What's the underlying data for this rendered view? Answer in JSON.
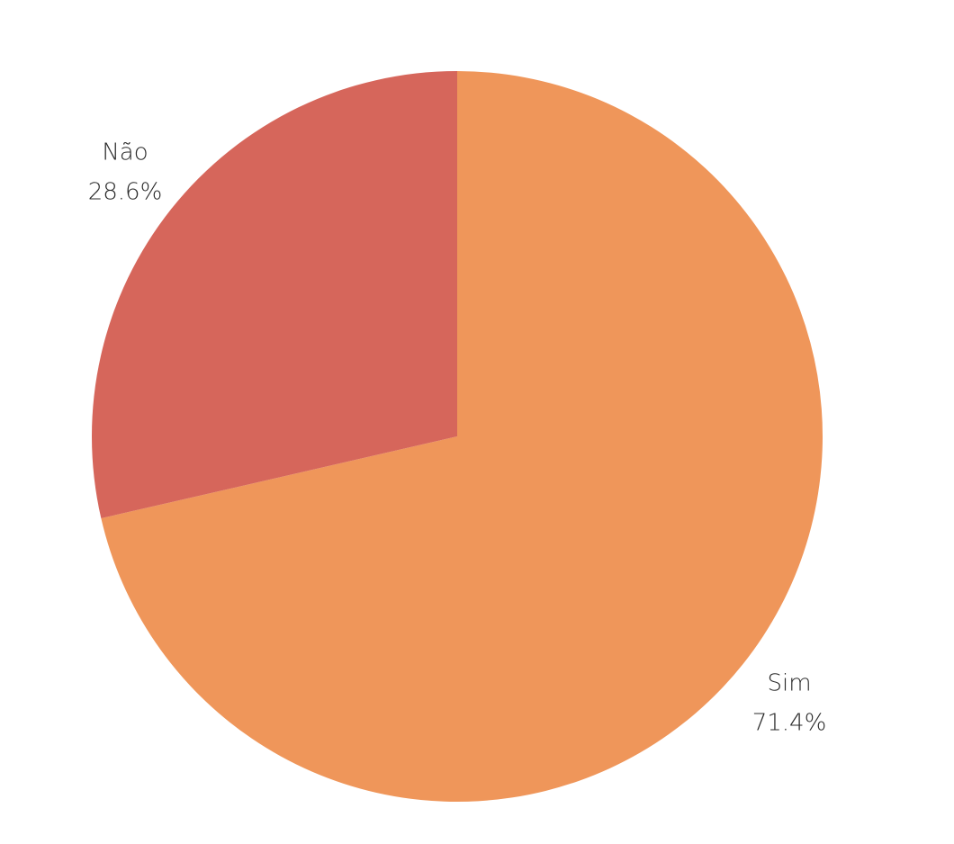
{
  "chart_data": {
    "type": "pie",
    "title": "",
    "slices": [
      {
        "label": "Sim",
        "value": 71.4,
        "value_label": "71.4%",
        "color": "#EF965A"
      },
      {
        "label": "Não",
        "value": 28.6,
        "value_label": "28.6%",
        "color": "#D6665B"
      }
    ],
    "start_angle": "12 o'clock",
    "direction": "clockwise",
    "legend": "none"
  }
}
